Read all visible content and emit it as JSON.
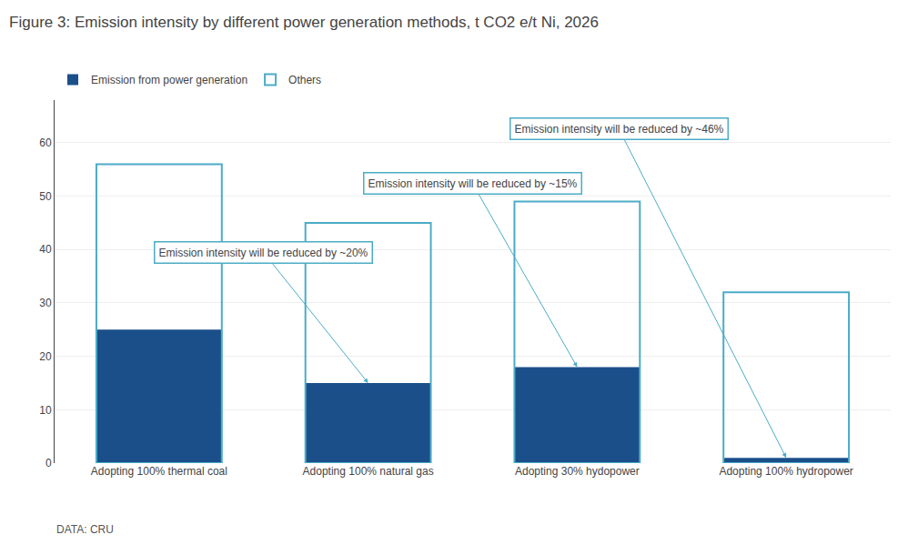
{
  "chart_data": {
    "type": "bar",
    "title": "Figure 3: Emission intensity by different power generation methods, t CO2 e/t Ni, 2026",
    "categories": [
      "Adopting 100% thermal coal",
      "Adopting 100% natural gas",
      "Adopting 30% hydopower",
      "Adopting 100% hydropower"
    ],
    "series": [
      {
        "name": "Emission from power generation",
        "color": "#1B4F8A",
        "values": [
          25,
          15,
          18,
          1
        ]
      },
      {
        "name": "Others",
        "color": "#4BACC6",
        "values": [
          56,
          45,
          49,
          32
        ]
      }
    ],
    "ylim": [
      0,
      68
    ],
    "yticks": [
      0,
      10,
      20,
      30,
      40,
      50,
      60
    ],
    "grid": true,
    "legend": "top",
    "annotations": [
      "Emission intensity will be reduced by ~20%",
      "Emission intensity will be reduced by ~15%",
      "Emission intensity will be reduced by ~46%"
    ],
    "source": "DATA: CRU"
  }
}
